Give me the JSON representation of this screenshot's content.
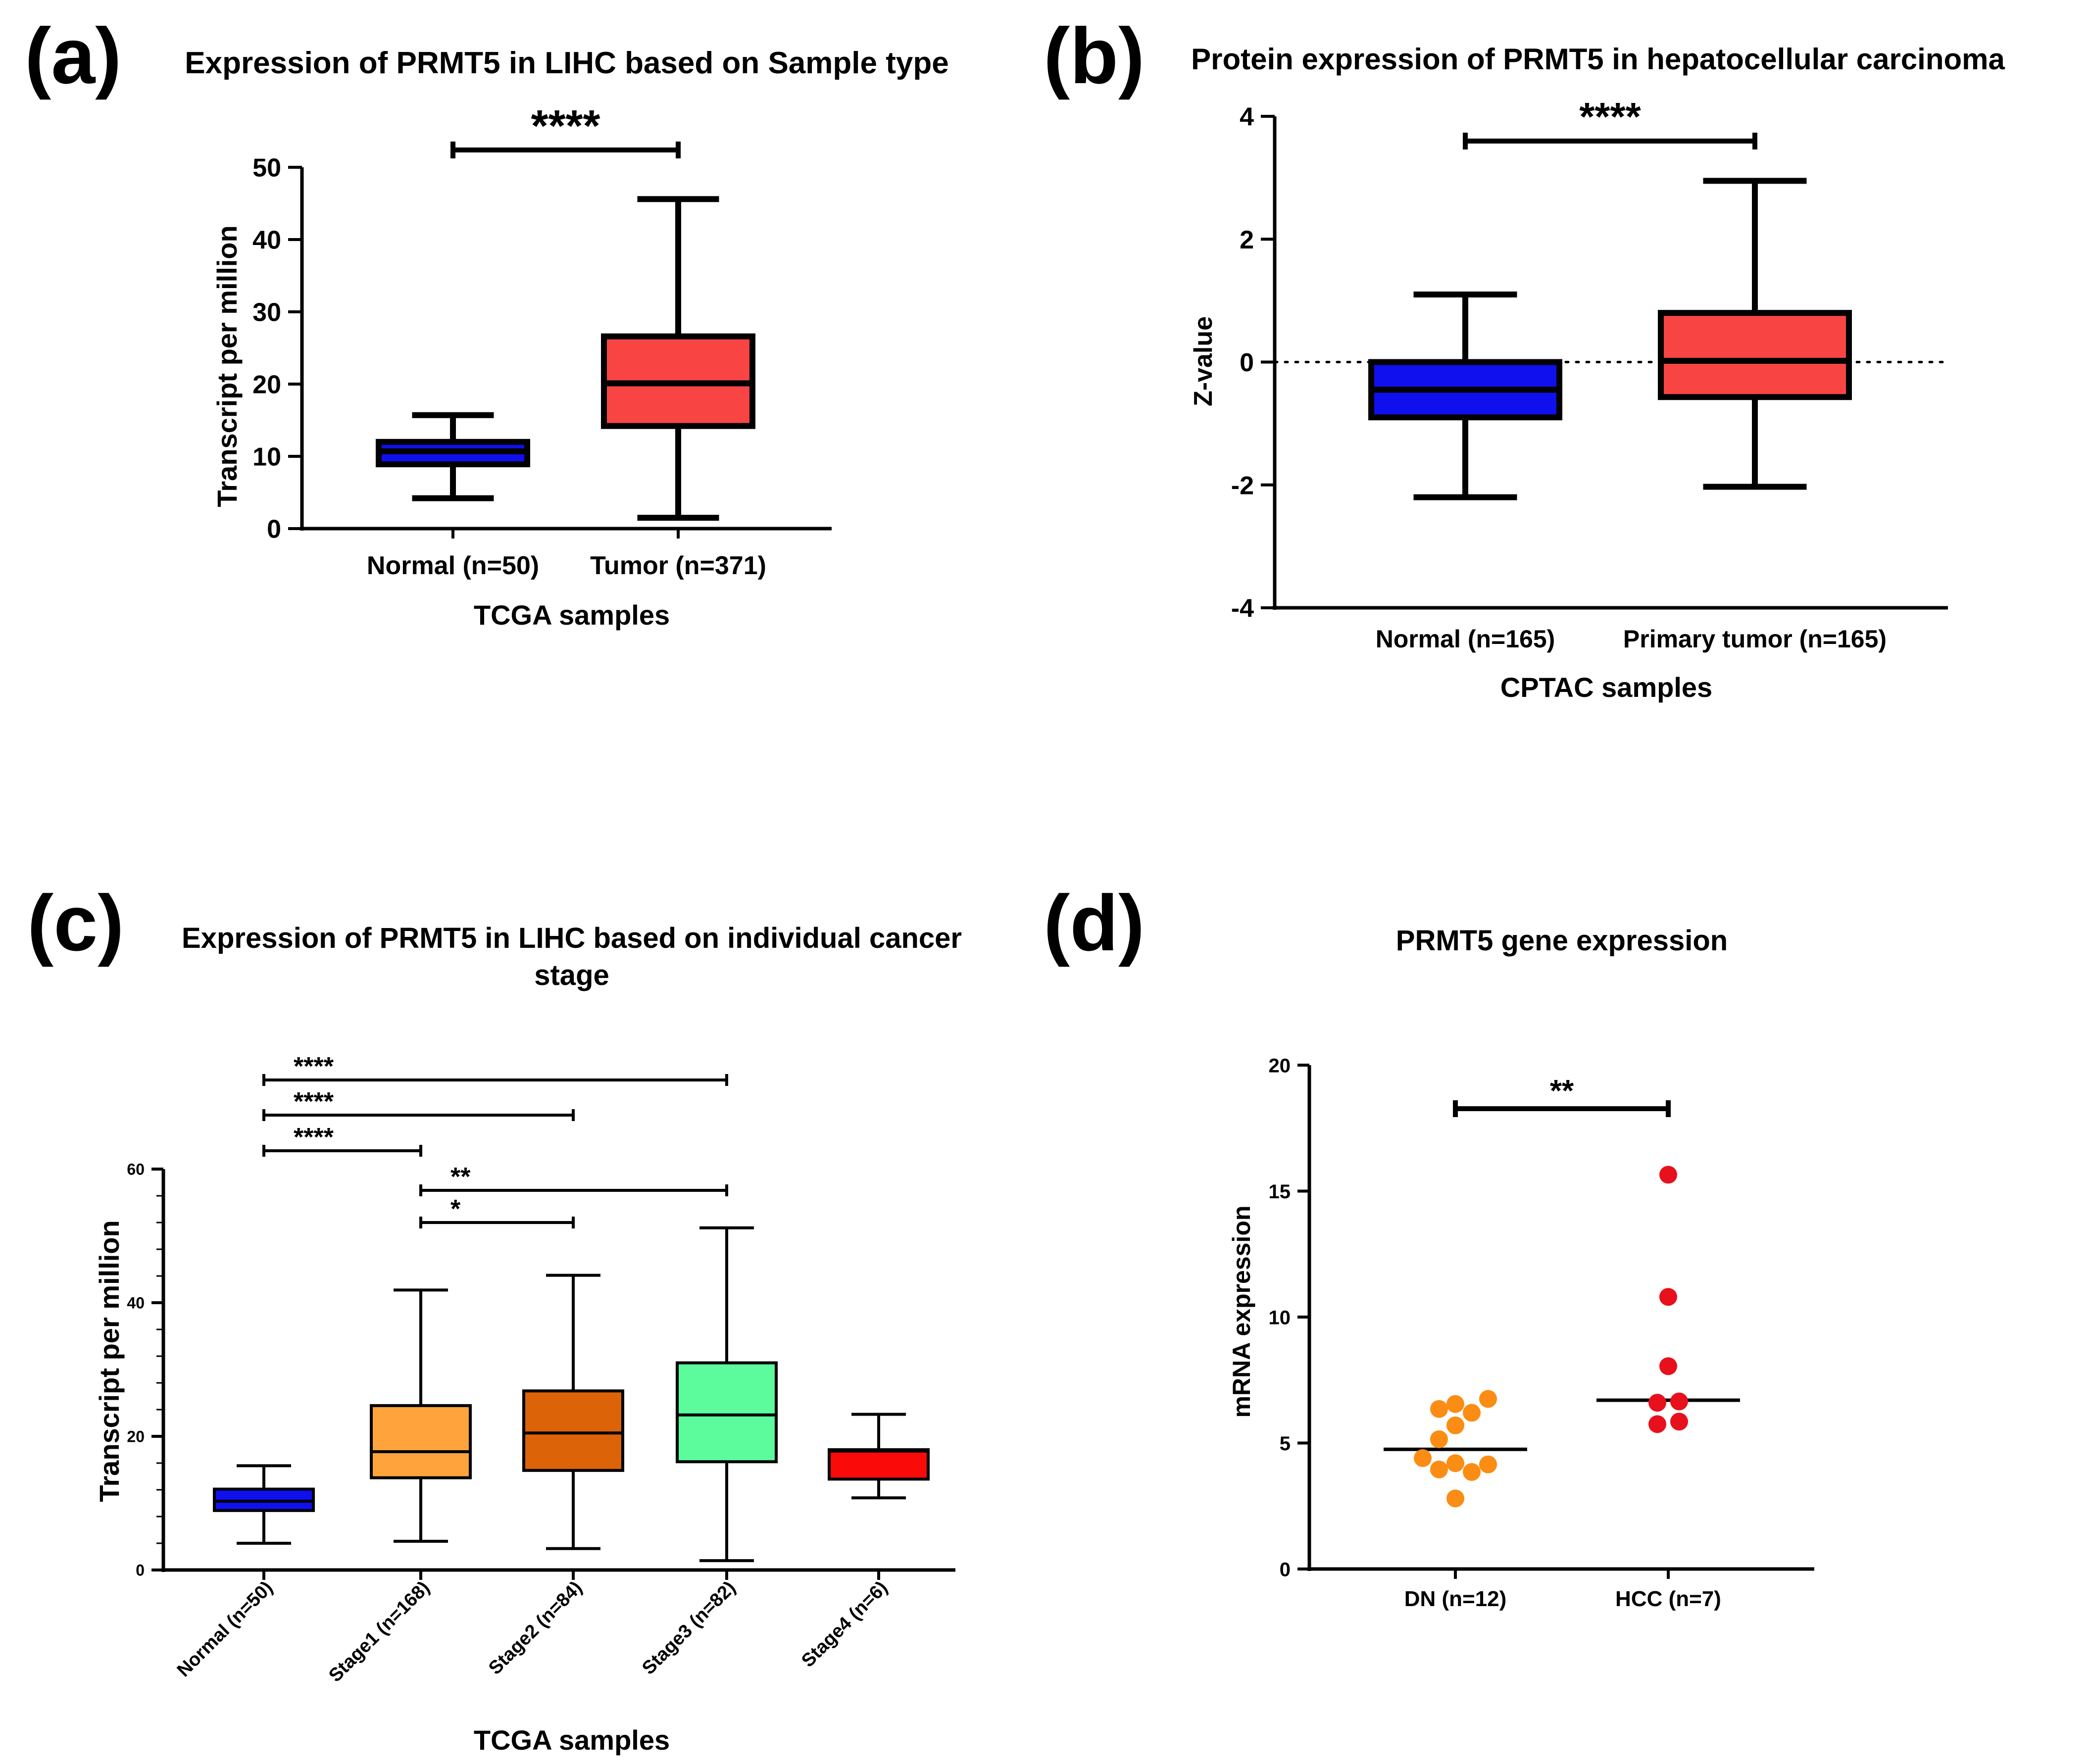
{
  "figure": {
    "panel_letters": [
      "(a)",
      "(b)",
      "(c)",
      "(d)"
    ]
  },
  "chart_data": [
    {
      "panel": "(a)",
      "type": "box",
      "title": "Expression of PRMT5 in LIHC based on Sample type",
      "xlabel": "TCGA samples",
      "ylabel": "Transcript per million",
      "ylim": [
        0,
        50
      ],
      "yticks": [
        0,
        10,
        20,
        30,
        40,
        50
      ],
      "categories": [
        "Normal (n=50)",
        "Tumor (n=371)"
      ],
      "boxes": [
        {
          "name": "Normal (n=50)",
          "min": 4.2,
          "q1": 8.9,
          "median": 10.7,
          "q3": 12.0,
          "max": 15.7,
          "color": "#1010ee"
        },
        {
          "name": "Tumor (n=371)",
          "min": 1.5,
          "q1": 14.2,
          "median": 20.1,
          "q3": 26.6,
          "max": 45.6,
          "color": "#f94444"
        }
      ],
      "significance": [
        {
          "from": 0,
          "to": 1,
          "label": "****"
        }
      ]
    },
    {
      "panel": "(b)",
      "type": "box",
      "title": "Protein expression of PRMT5 in hepatocellular carcinoma",
      "xlabel": "CPTAC samples",
      "ylabel": "Z-value",
      "ylim": [
        -4,
        4
      ],
      "yticks": [
        -4,
        -2,
        0,
        2,
        4
      ],
      "reference_line": 0,
      "categories": [
        "Normal (n=165)",
        "Primary tumor (n=165)"
      ],
      "boxes": [
        {
          "name": "Normal (n=165)",
          "min": -2.2,
          "q1": -0.9,
          "median": -0.45,
          "q3": 0.0,
          "max": 1.1,
          "color": "#1010ee"
        },
        {
          "name": "Primary tumor (n=165)",
          "min": -2.03,
          "q1": -0.57,
          "median": 0.02,
          "q3": 0.8,
          "max": 2.95,
          "color": "#f94444"
        }
      ],
      "significance": [
        {
          "from": 0,
          "to": 1,
          "label": "****"
        }
      ]
    },
    {
      "panel": "(c)",
      "type": "box",
      "title_lines": [
        "Expression of PRMT5 in LIHC based on individual cancer",
        "stage"
      ],
      "xlabel": "TCGA samples",
      "ylabel": "Transcript per million",
      "ylim": [
        0,
        60
      ],
      "yticks": [
        0,
        20,
        40,
        60
      ],
      "categories": [
        "Normal (n=50)",
        "Stage1 (n=168)",
        "Stage2 (n=84)",
        "Stage3 (n=82)",
        "Stage4 (n=6)"
      ],
      "boxes": [
        {
          "name": "Normal (n=50)",
          "min": 4.0,
          "q1": 8.9,
          "median": 10.3,
          "q3": 12.1,
          "max": 15.6,
          "color": "#1010ee"
        },
        {
          "name": "Stage1 (n=168)",
          "min": 4.3,
          "q1": 13.8,
          "median": 17.7,
          "q3": 24.6,
          "max": 41.9,
          "color": "#ffa43c"
        },
        {
          "name": "Stage2 (n=84)",
          "min": 3.2,
          "q1": 14.9,
          "median": 20.5,
          "q3": 26.8,
          "max": 44.1,
          "color": "#dc6308"
        },
        {
          "name": "Stage3 (n=82)",
          "min": 1.4,
          "q1": 16.2,
          "median": 23.2,
          "q3": 31.0,
          "max": 51.2,
          "color": "#5cfc9c"
        },
        {
          "name": "Stage4 (n=6)",
          "min": 10.8,
          "q1": 13.6,
          "median": 17.8,
          "q3": 18.0,
          "max": 23.3,
          "color": "#fb0a0a"
        }
      ],
      "significance": [
        {
          "from": 0,
          "to": 3,
          "label": "****"
        },
        {
          "from": 0,
          "to": 2,
          "label": "****"
        },
        {
          "from": 0,
          "to": 1,
          "label": "****"
        },
        {
          "from": 1,
          "to": 3,
          "label": "**"
        },
        {
          "from": 1,
          "to": 2,
          "label": "*"
        }
      ]
    },
    {
      "panel": "(d)",
      "type": "scatter",
      "title": "PRMT5 gene expression",
      "xlabel": "",
      "ylabel": "mRNA expression",
      "ylim": [
        0,
        20
      ],
      "yticks": [
        0,
        5,
        10,
        15,
        20
      ],
      "categories": [
        "DN (n=12)",
        "HCC (n=7)"
      ],
      "groups": [
        {
          "name": "DN (n=12)",
          "color": "#fb8c14",
          "median": 4.75,
          "points": [
            {
              "offset": -0.15,
              "y": 6.35
            },
            {
              "offset": 0.0,
              "y": 6.55
            },
            {
              "offset": 0.15,
              "y": 6.2
            },
            {
              "offset": 0.3,
              "y": 6.75
            },
            {
              "offset": -0.15,
              "y": 5.15
            },
            {
              "offset": 0.0,
              "y": 5.7
            },
            {
              "offset": -0.3,
              "y": 4.4
            },
            {
              "offset": -0.15,
              "y": 3.95
            },
            {
              "offset": 0.0,
              "y": 4.2
            },
            {
              "offset": 0.15,
              "y": 3.85
            },
            {
              "offset": 0.3,
              "y": 4.15
            },
            {
              "offset": 0.0,
              "y": 2.8
            }
          ]
        },
        {
          "name": "HCC (n=7)",
          "color": "#e8101c",
          "median": 6.7,
          "points": [
            {
              "offset": 0.0,
              "y": 15.65
            },
            {
              "offset": 0.0,
              "y": 10.8
            },
            {
              "offset": 0.0,
              "y": 8.05
            },
            {
              "offset": -0.1,
              "y": 6.6
            },
            {
              "offset": 0.1,
              "y": 6.65
            },
            {
              "offset": -0.1,
              "y": 5.75
            },
            {
              "offset": 0.1,
              "y": 5.85
            }
          ]
        }
      ],
      "significance": [
        {
          "from": 0,
          "to": 1,
          "label": "**"
        }
      ]
    }
  ]
}
